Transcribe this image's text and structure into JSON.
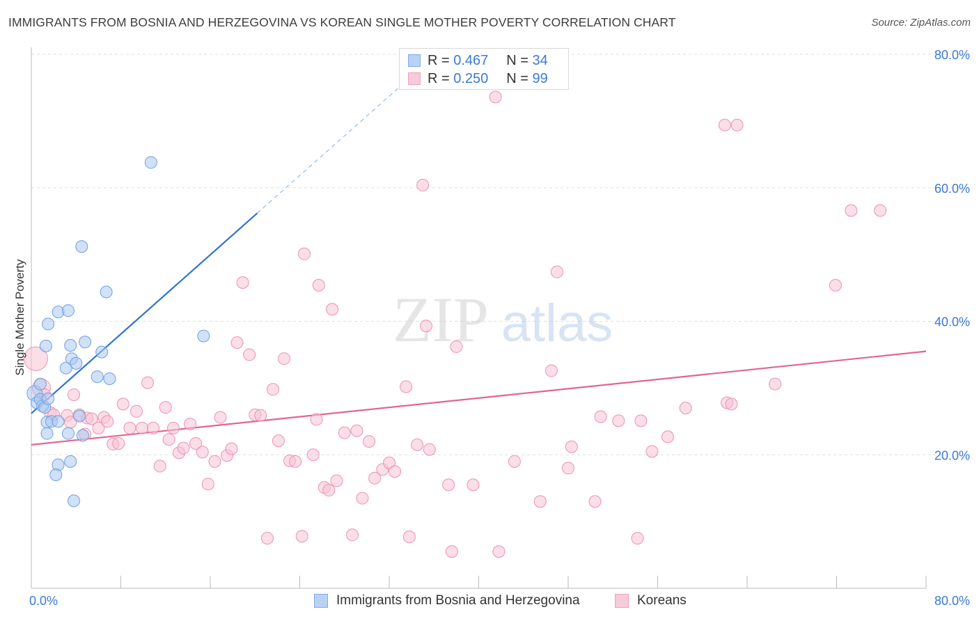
{
  "title": "IMMIGRANTS FROM BOSNIA AND HERZEGOVINA VS KOREAN SINGLE MOTHER POVERTY CORRELATION CHART",
  "source": "Source: ZipAtlas.com",
  "watermark": {
    "zip": "ZIP",
    "atlas": "atlas"
  },
  "legend": {
    "r_label": "R =",
    "n_label": "N =",
    "rows": [
      {
        "r": "0.467",
        "n": "34",
        "color": "#7eaaf0"
      },
      {
        "r": "0.250",
        "n": "99",
        "color": "#f4a8c0"
      }
    ]
  },
  "colors": {
    "blue_fill": "#aac8f2",
    "blue_stroke": "#6f9fe0",
    "blue_line": "#2f73d6",
    "pink_fill": "#f7c2d3",
    "pink_stroke": "#ea92b0",
    "pink_line": "#e2658f",
    "tick_label": "#3b78d6",
    "grid": "#dddddd"
  },
  "chart_data": {
    "type": "scatter",
    "title": "IMMIGRANTS FROM BOSNIA AND HERZEGOVINA VS KOREAN SINGLE MOTHER POVERTY CORRELATION CHART",
    "xlabel": "",
    "ylabel": "Single Mother Poverty",
    "xlim": [
      0,
      80
    ],
    "ylim": [
      0,
      80
    ],
    "x_tick_labels": [
      "0.0%",
      "80.0%"
    ],
    "y_tick_labels": [
      {
        "value": 20,
        "label": "20.0%"
      },
      {
        "value": 40,
        "label": "40.0%"
      },
      {
        "value": 60,
        "label": "60.0%"
      },
      {
        "value": 80,
        "label": "80.0%"
      }
    ],
    "grid": "horizontal dashed",
    "legend_position": "bottom",
    "series": [
      {
        "name": "Immigrants from Bosnia and Herzegovina",
        "R": 0.467,
        "N": 34,
        "trend": {
          "x": [
            0,
            20.2
          ],
          "y": [
            26.2,
            56.2
          ],
          "dashed_to": [
            34.0,
            76.7
          ]
        },
        "points": [
          [
            0.3,
            29.2
          ],
          [
            0.5,
            27.8
          ],
          [
            0.8,
            28.3
          ],
          [
            1.0,
            27.3
          ],
          [
            1.2,
            27.1
          ],
          [
            3.5,
            36.4
          ],
          [
            1.4,
            24.9
          ],
          [
            1.4,
            23.2
          ],
          [
            1.8,
            25.0
          ],
          [
            2.4,
            25.0
          ],
          [
            2.4,
            41.4
          ],
          [
            1.5,
            39.6
          ],
          [
            1.3,
            36.3
          ],
          [
            3.3,
            41.6
          ],
          [
            4.8,
            36.9
          ],
          [
            3.1,
            33.0
          ],
          [
            3.6,
            34.4
          ],
          [
            4.0,
            33.7
          ],
          [
            6.3,
            35.4
          ],
          [
            5.9,
            31.7
          ],
          [
            7.0,
            31.4
          ],
          [
            4.5,
            51.2
          ],
          [
            6.7,
            44.4
          ],
          [
            10.7,
            63.8
          ],
          [
            15.4,
            37.8
          ],
          [
            3.3,
            23.2
          ],
          [
            4.6,
            22.9
          ],
          [
            4.3,
            25.8
          ],
          [
            3.5,
            19.0
          ],
          [
            2.4,
            18.5
          ],
          [
            2.2,
            17.0
          ],
          [
            3.8,
            13.1
          ],
          [
            0.8,
            30.6
          ],
          [
            1.5,
            28.4
          ]
        ]
      },
      {
        "name": "Koreans",
        "R": 0.25,
        "N": 99,
        "trend": {
          "x": [
            0,
            80
          ],
          "y": [
            21.5,
            35.5
          ]
        },
        "points": [
          [
            0.4,
            34.4
          ],
          [
            0.9,
            30.0
          ],
          [
            1.2,
            29.0
          ],
          [
            1.7,
            26.3
          ],
          [
            2.0,
            26.0
          ],
          [
            3.2,
            25.9
          ],
          [
            3.5,
            24.9
          ],
          [
            3.8,
            29.0
          ],
          [
            4.3,
            26.0
          ],
          [
            4.8,
            23.1
          ],
          [
            5.0,
            25.5
          ],
          [
            5.4,
            25.4
          ],
          [
            6.0,
            24.0
          ],
          [
            6.5,
            25.6
          ],
          [
            6.8,
            25.0
          ],
          [
            7.3,
            21.6
          ],
          [
            7.8,
            21.7
          ],
          [
            8.2,
            27.6
          ],
          [
            8.8,
            24.0
          ],
          [
            9.4,
            26.5
          ],
          [
            9.9,
            24.0
          ],
          [
            10.4,
            30.8
          ],
          [
            10.9,
            24.0
          ],
          [
            11.5,
            18.3
          ],
          [
            12.0,
            27.1
          ],
          [
            12.3,
            22.3
          ],
          [
            12.7,
            24.0
          ],
          [
            13.2,
            20.3
          ],
          [
            13.6,
            21.0
          ],
          [
            14.2,
            24.6
          ],
          [
            14.7,
            21.7
          ],
          [
            15.3,
            20.4
          ],
          [
            15.8,
            15.6
          ],
          [
            16.4,
            19.0
          ],
          [
            16.9,
            25.6
          ],
          [
            17.5,
            19.9
          ],
          [
            17.9,
            20.9
          ],
          [
            18.4,
            36.8
          ],
          [
            18.9,
            45.8
          ],
          [
            19.5,
            35.0
          ],
          [
            20.0,
            26.0
          ],
          [
            20.5,
            25.9
          ],
          [
            21.1,
            7.5
          ],
          [
            21.6,
            29.8
          ],
          [
            22.1,
            22.1
          ],
          [
            22.6,
            34.4
          ],
          [
            23.1,
            19.1
          ],
          [
            23.6,
            19.0
          ],
          [
            24.2,
            7.8
          ],
          [
            24.4,
            50.1
          ],
          [
            25.2,
            20.0
          ],
          [
            25.5,
            25.3
          ],
          [
            25.7,
            45.4
          ],
          [
            26.2,
            15.1
          ],
          [
            26.6,
            14.7
          ],
          [
            26.9,
            41.8
          ],
          [
            27.3,
            16.1
          ],
          [
            28.0,
            23.3
          ],
          [
            28.7,
            8.0
          ],
          [
            29.1,
            23.6
          ],
          [
            29.6,
            13.5
          ],
          [
            30.2,
            22.0
          ],
          [
            30.7,
            16.5
          ],
          [
            31.4,
            17.8
          ],
          [
            32.0,
            18.8
          ],
          [
            32.5,
            17.5
          ],
          [
            33.5,
            30.2
          ],
          [
            33.8,
            7.7
          ],
          [
            34.5,
            21.5
          ],
          [
            35.0,
            60.4
          ],
          [
            35.3,
            39.3
          ],
          [
            35.6,
            20.8
          ],
          [
            37.3,
            15.5
          ],
          [
            37.6,
            5.5
          ],
          [
            38.0,
            36.2
          ],
          [
            39.5,
            15.5
          ],
          [
            41.5,
            73.6
          ],
          [
            41.8,
            5.5
          ],
          [
            43.2,
            19.0
          ],
          [
            45.5,
            13.0
          ],
          [
            46.5,
            32.6
          ],
          [
            47.0,
            47.4
          ],
          [
            48.0,
            18.0
          ],
          [
            48.3,
            21.2
          ],
          [
            50.4,
            13.0
          ],
          [
            50.9,
            25.7
          ],
          [
            52.5,
            25.1
          ],
          [
            54.2,
            7.5
          ],
          [
            54.5,
            25.1
          ],
          [
            55.5,
            20.5
          ],
          [
            56.9,
            22.7
          ],
          [
            58.5,
            27.0
          ],
          [
            62.0,
            69.4
          ],
          [
            62.2,
            27.8
          ],
          [
            62.6,
            27.6
          ],
          [
            63.1,
            69.4
          ],
          [
            66.5,
            30.6
          ],
          [
            71.9,
            45.4
          ],
          [
            73.3,
            56.6
          ],
          [
            75.9,
            56.6
          ]
        ]
      }
    ]
  }
}
